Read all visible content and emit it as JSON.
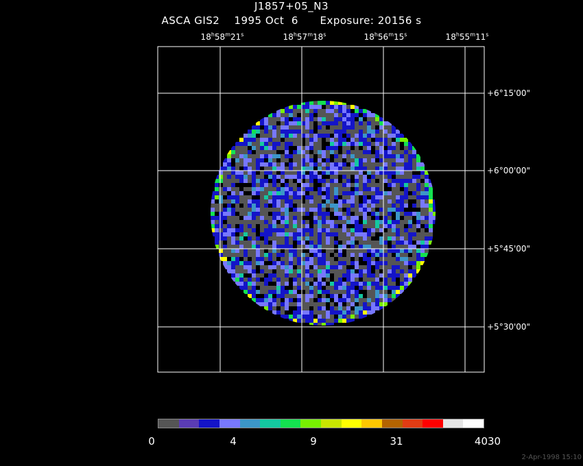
{
  "header": {
    "title": "J1857+05_N3",
    "subtitle": "ASCA GIS2    1995 Oct  6      Exposure: 20156 s"
  },
  "ra_axis": {
    "labels": [
      {
        "h": "18",
        "m": "58",
        "s": "21"
      },
      {
        "h": "18",
        "m": "57",
        "s": "18"
      },
      {
        "h": "18",
        "m": "56",
        "s": "15"
      },
      {
        "h": "18",
        "m": "55",
        "s": "11"
      }
    ]
  },
  "dec_axis": {
    "labels": [
      "+6°15'00\"",
      "+6°00'00\"",
      "+5°45'00\"",
      "+5°30'00\""
    ]
  },
  "colorbar": {
    "colors": [
      "#555555",
      "#5a3cb4",
      "#1414c8",
      "#7878ff",
      "#3c96c8",
      "#14c8a0",
      "#14e150",
      "#78f000",
      "#c8e600",
      "#ffff00",
      "#ffc800",
      "#b46400",
      "#e13c14",
      "#ff0000",
      "#e6e6e6",
      "#ffffff"
    ],
    "ticks": [
      "0",
      "4",
      "9",
      "31",
      "4030"
    ]
  },
  "footer": {
    "timestamp": "2-Apr-1998 15:10"
  }
}
